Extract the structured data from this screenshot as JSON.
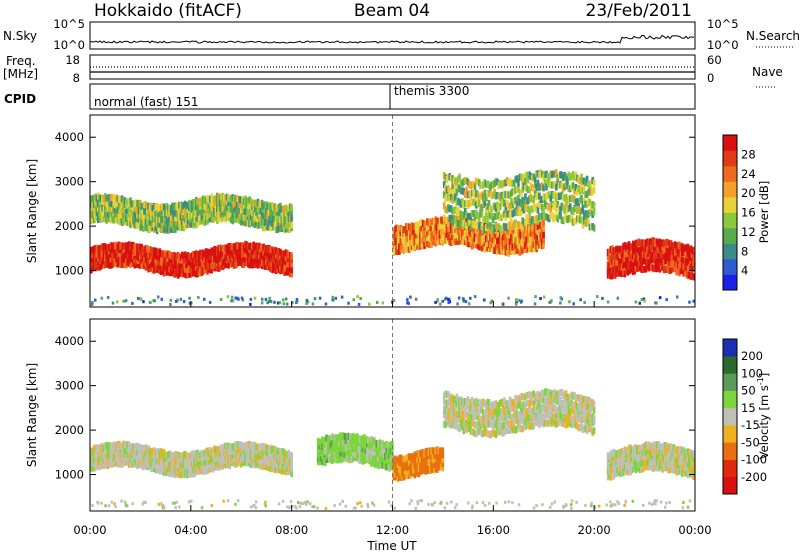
{
  "header": {
    "station": "Hokkaido (fitACF)",
    "beam": "Beam 04",
    "date": "23/Feb/2011"
  },
  "strip": {
    "nsky_label": "N.Sky",
    "nsky_ticks": [
      "10^5",
      "10^0"
    ],
    "nsearch_label": "N.Search",
    "nsearch_ticks": [
      "10^5",
      "10^0"
    ],
    "freq_label": "Freq.",
    "freq_unit": "[MHz]",
    "freq_ticks": [
      "18",
      "8"
    ],
    "nave_label": "Nave",
    "nave_ticks": [
      "60",
      "0"
    ],
    "cpid_label": "CPID",
    "cpid_entries": [
      "normal (fast) 151",
      "themis 3300"
    ]
  },
  "chart_data": [
    {
      "type": "heatmap",
      "name": "power",
      "xlabel": "",
      "ylabel": "Slant Range [km]",
      "ylim": [
        180,
        4500
      ],
      "y_ticks": [
        "1000",
        "2000",
        "3000",
        "4000"
      ],
      "x_ticks": [
        "00:00",
        "04:00",
        "08:00",
        "12:00",
        "16:00",
        "20:00",
        "00:00"
      ],
      "colorbar": {
        "label": "Power [dB]",
        "ticks": [
          "4",
          "8",
          "12",
          "16",
          "20",
          "24",
          "28"
        ],
        "colors": [
          "#1a22e8",
          "#2d5bd0",
          "#3c8c86",
          "#5aaa4e",
          "#8cc83c",
          "#e8d23a",
          "#f4a02a",
          "#ee6a1e",
          "#e03a16",
          "#d81010"
        ]
      },
      "echo_bands": [
        {
          "t_start": 0,
          "t_end": 8,
          "range_km": [
            1000,
            1500
          ],
          "power_db": 28
        },
        {
          "t_start": 0,
          "t_end": 8,
          "range_km": [
            2000,
            2600
          ],
          "power_db": 14
        },
        {
          "t_start": 12,
          "t_end": 18,
          "range_km": [
            1500,
            2100
          ],
          "power_db": 22
        },
        {
          "t_start": 14,
          "t_end": 20,
          "range_km": [
            2000,
            3200
          ],
          "power_db": 14
        },
        {
          "t_start": 20.5,
          "t_end": 24,
          "range_km": [
            900,
            1600
          ],
          "power_db": 28
        }
      ]
    },
    {
      "type": "heatmap",
      "name": "velocity",
      "xlabel": "Time UT",
      "ylabel": "Slant Range [km]",
      "ylim": [
        180,
        4500
      ],
      "y_ticks": [
        "1000",
        "2000",
        "3000",
        "4000"
      ],
      "x_ticks": [
        "00:00",
        "04:00",
        "08:00",
        "12:00",
        "16:00",
        "20:00",
        "00:00"
      ],
      "colorbar": {
        "label": "Velocity [m s",
        "label_sup": "-1",
        "label_end": "]",
        "ticks": [
          "200",
          "100",
          "50",
          "15",
          "-15",
          "-50",
          "-100",
          "-200"
        ],
        "colors": [
          "#1c2fb0",
          "#2c6a2c",
          "#5a9a5a",
          "#7cd63a",
          "#c0c0b8",
          "#f0b020",
          "#e87010",
          "#e02a10",
          "#d81010"
        ]
      },
      "echo_bands": [
        {
          "t_start": 0,
          "t_end": 8,
          "range_km": [
            1100,
            1600
          ],
          "velocity_ms": 0
        },
        {
          "t_start": 9,
          "t_end": 12,
          "range_km": [
            1200,
            1800
          ],
          "velocity_ms": 30
        },
        {
          "t_start": 12,
          "t_end": 14,
          "range_km": [
            1000,
            1500
          ],
          "velocity_ms": -60
        },
        {
          "t_start": 14,
          "t_end": 20,
          "range_km": [
            2000,
            2800
          ],
          "velocity_ms": 0
        },
        {
          "t_start": 20.5,
          "t_end": 24,
          "range_km": [
            1000,
            1600
          ],
          "velocity_ms": 0
        }
      ]
    }
  ]
}
